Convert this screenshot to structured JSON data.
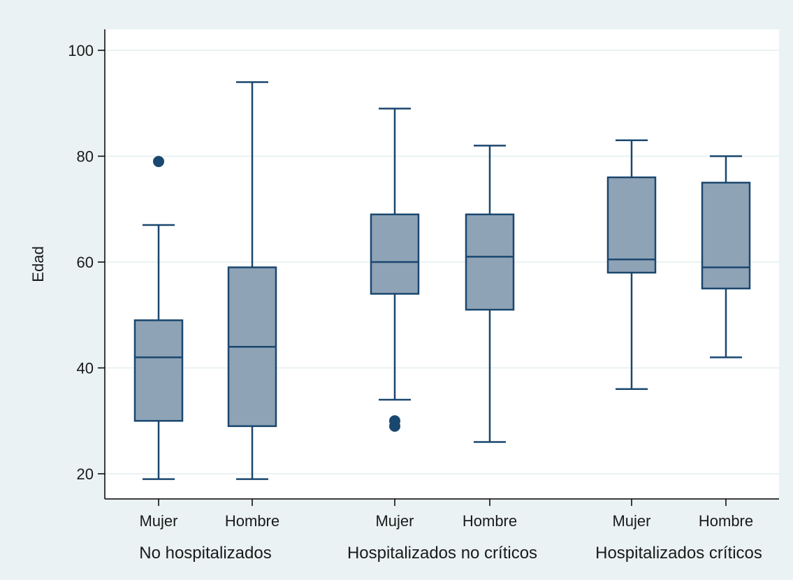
{
  "colors": {
    "outer_background": "#eaf2f3",
    "plot_background": "#ffffff",
    "gridline": "#eaf2f3",
    "box_fill": "#8fa3b6",
    "box_stroke": "#1a476f",
    "outlier": "#1a476f",
    "axis": "#000000"
  },
  "chart_data": {
    "type": "box",
    "ylabel": "Edad",
    "ylim": [
      15,
      104
    ],
    "yticks": [
      20,
      40,
      60,
      80,
      100
    ],
    "grid": true,
    "groups": [
      {
        "label": "No hospitalizados",
        "boxes": [
          {
            "label": "Mujer",
            "min": 19,
            "q1": 30,
            "median": 42,
            "q3": 49,
            "max": 67,
            "outliers": [
              79
            ]
          },
          {
            "label": "Hombre",
            "min": 19,
            "q1": 29,
            "median": 44,
            "q3": 59,
            "max": 94,
            "outliers": []
          }
        ]
      },
      {
        "label": "Hospitalizados no críticos",
        "boxes": [
          {
            "label": "Mujer",
            "min": 34,
            "q1": 54,
            "median": 60,
            "q3": 69,
            "max": 89,
            "outliers": [
              29,
              30
            ]
          },
          {
            "label": "Hombre",
            "min": 26,
            "q1": 51,
            "median": 61,
            "q3": 69,
            "max": 82,
            "outliers": []
          }
        ]
      },
      {
        "label": "Hospitalizados críticos",
        "boxes": [
          {
            "label": "Mujer",
            "min": 36,
            "q1": 58,
            "median": 60.5,
            "q3": 76,
            "max": 83,
            "outliers": []
          },
          {
            "label": "Hombre",
            "min": 42,
            "q1": 55,
            "median": 59,
            "q3": 75,
            "max": 80,
            "outliers": []
          }
        ]
      }
    ]
  }
}
